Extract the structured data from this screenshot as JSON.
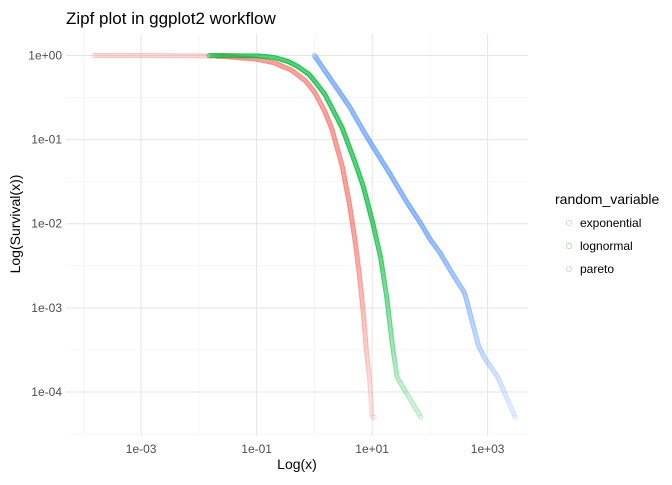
{
  "chart_data": {
    "type": "scatter",
    "title": "Zipf plot in ggplot2 workflow",
    "xlabel": "Log(x)",
    "ylabel": "Log(Survival(x))",
    "x_scale": "log10",
    "y_scale": "log10",
    "xlim": [
      5e-05,
      5000
    ],
    "ylim": [
      3e-05,
      1.8
    ],
    "x_ticks": [
      {
        "value": 0.001,
        "label": "1e-03"
      },
      {
        "value": 0.1,
        "label": "1e-01"
      },
      {
        "value": 10,
        "label": "1e+01"
      },
      {
        "value": 1000,
        "label": "1e+03"
      }
    ],
    "y_ticks": [
      {
        "value": 1,
        "label": "1e+00"
      },
      {
        "value": 0.1,
        "label": "1e-01"
      },
      {
        "value": 0.01,
        "label": "1e-02"
      },
      {
        "value": 0.001,
        "label": "1e-03"
      },
      {
        "value": 0.0001,
        "label": "1e-04"
      }
    ],
    "grid": true,
    "legend": {
      "title": "random_variable",
      "position": "right",
      "entries": [
        "exponential",
        "lognormal",
        "pareto"
      ]
    },
    "series": [
      {
        "name": "exponential",
        "color": "#F8766D",
        "x": [
          0.00015,
          0.0003,
          0.0006,
          0.001,
          0.003,
          0.01,
          0.03,
          0.1,
          0.2,
          0.4,
          0.7,
          1.0,
          1.5,
          2.0,
          3.0,
          4.0,
          5.0,
          6.0,
          7.0,
          8.0,
          9.0,
          10.0,
          11.0
        ],
        "y": [
          1.0,
          1.0,
          1.0,
          0.999,
          0.997,
          0.99,
          0.97,
          0.905,
          0.82,
          0.67,
          0.5,
          0.37,
          0.22,
          0.135,
          0.05,
          0.018,
          0.0067,
          0.0025,
          0.0009,
          0.0003,
          0.00015,
          5e-05,
          5e-05
        ]
      },
      {
        "name": "lognormal",
        "color": "#00BA38",
        "x": [
          0.015,
          0.03,
          0.06,
          0.1,
          0.2,
          0.35,
          0.5,
          0.8,
          1.0,
          1.5,
          2.0,
          3.0,
          5.0,
          7.0,
          10.0,
          14.0,
          18.0,
          22.0,
          27.0,
          70.0
        ],
        "y": [
          1.0,
          0.998,
          0.99,
          0.99,
          0.95,
          0.85,
          0.75,
          0.6,
          0.5,
          0.35,
          0.24,
          0.14,
          0.055,
          0.028,
          0.011,
          0.004,
          0.0013,
          0.0004,
          0.00015,
          5e-05
        ]
      },
      {
        "name": "pareto",
        "color": "#619CFF",
        "x": [
          1.0,
          2.0,
          4.0,
          8.0,
          12.0,
          20.0,
          40.0,
          70.0,
          100.0,
          150.0,
          250.0,
          400.0,
          700.0,
          900.0,
          1500.0,
          3000.0
        ],
        "y": [
          1.0,
          0.5,
          0.25,
          0.11,
          0.07,
          0.04,
          0.018,
          0.01,
          0.0066,
          0.0045,
          0.0025,
          0.0015,
          0.00035,
          0.00025,
          0.00015,
          5e-05
        ]
      }
    ]
  }
}
